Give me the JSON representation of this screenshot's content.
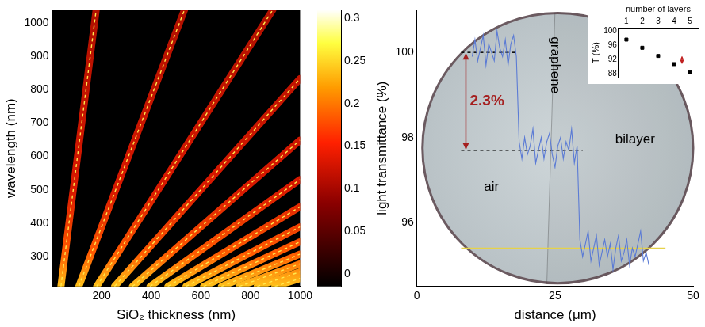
{
  "chart_data": [
    {
      "type": "heatmap",
      "x_label": "SiO₂ thickness (nm)",
      "y_label": "wavelength (nm)",
      "xlim": [
        0,
        1000
      ],
      "xticks": [
        200,
        400,
        600,
        800,
        1000
      ],
      "ylim": [
        210,
        1040
      ],
      "yticks": [
        300,
        400,
        500,
        600,
        700,
        800,
        900,
        1000
      ],
      "grid": false,
      "color": "#ffe94d",
      "line_style": "dashed",
      "contrast_maxima": [
        {
          "x": [
            36,
            178
          ],
          "y": [
            210,
            1040
          ]
        },
        {
          "x": [
            108,
            534
          ],
          "y": [
            210,
            1040
          ]
        },
        {
          "x": [
            180,
            890
          ],
          "y": [
            210,
            1040
          ]
        },
        {
          "x": [
            252,
            1000
          ],
          "y": [
            210,
            834
          ]
        },
        {
          "x": [
            324,
            1000
          ],
          "y": [
            210,
            649
          ]
        },
        {
          "x": [
            395,
            1000
          ],
          "y": [
            210,
            531
          ]
        },
        {
          "x": [
            467,
            1000
          ],
          "y": [
            210,
            449
          ]
        },
        {
          "x": [
            540,
            1000
          ],
          "y": [
            210,
            389
          ]
        },
        {
          "x": [
            611,
            1000
          ],
          "y": [
            210,
            344
          ]
        },
        {
          "x": [
            683,
            1000
          ],
          "y": [
            210,
            307
          ]
        },
        {
          "x": [
            755,
            1000
          ],
          "y": [
            210,
            278
          ]
        },
        {
          "x": [
            827,
            1000
          ],
          "y": [
            210,
            254
          ]
        },
        {
          "x": [
            898,
            1000
          ],
          "y": [
            210,
            234
          ]
        }
      ],
      "colorbar": {
        "range": [
          -0.015,
          0.31
        ],
        "ticks": [
          0,
          0.05,
          0.1,
          0.15,
          0.2,
          0.25,
          0.3
        ]
      }
    },
    {
      "type": "line",
      "x_label": "distance (μm)",
      "y_label": "light transmittance (%)",
      "xlim": [
        0,
        50
      ],
      "xticks": [
        0,
        25,
        50
      ],
      "ylim": [
        94.5,
        101
      ],
      "yticks": [
        96,
        98,
        100
      ],
      "grid": false,
      "color": "#5b7bd5",
      "x": [
        10,
        10.5,
        11,
        11.5,
        12,
        12.5,
        13,
        13.5,
        14,
        14.5,
        15,
        15.5,
        16,
        16.5,
        17,
        17.5,
        18,
        18.5,
        19,
        19.5,
        20,
        20.5,
        21,
        21.5,
        22,
        22.5,
        23,
        23.5,
        24,
        24.5,
        25,
        25.5,
        26,
        26.5,
        27,
        27.5,
        28,
        28.5,
        29,
        29.5,
        30,
        30.5,
        31,
        31.5,
        32,
        32.5,
        33,
        33.5,
        34,
        34.5,
        35,
        35.5,
        36,
        36.5,
        37,
        37.5,
        38,
        38.5,
        39,
        39.5,
        40,
        40.5,
        41,
        41.5,
        42
      ],
      "values": [
        99.9,
        100.3,
        99.8,
        100.1,
        100.4,
        99.7,
        100.2,
        100.0,
        99.8,
        100.5,
        100.1,
        99.9,
        100.3,
        99.7,
        100.2,
        100.4,
        99.9,
        97.9,
        97.5,
        98.0,
        97.6,
        97.8,
        98.2,
        97.4,
        97.7,
        98.0,
        97.5,
        97.9,
        98.1,
        97.6,
        97.3,
        97.8,
        98.0,
        97.5,
        97.9,
        97.7,
        98.2,
        97.4,
        97.8,
        95.6,
        95.2,
        95.5,
        95.8,
        95.1,
        95.4,
        95.7,
        95.0,
        95.3,
        95.6,
        95.2,
        95.5,
        94.9,
        95.4,
        95.7,
        95.1,
        95.3,
        95.6,
        95.0,
        95.4,
        95.2,
        95.5,
        95.8,
        95.1,
        95.3,
        95.0
      ],
      "reference_lines": [
        {
          "y": 100,
          "x": [
            8,
            18
          ],
          "color": "#000000",
          "line_style": "dashed"
        },
        {
          "y": 97.7,
          "x": [
            8,
            30
          ],
          "color": "#000000",
          "line_style": "dashed"
        },
        {
          "y": 95.4,
          "x": [
            8,
            45
          ],
          "color": "#e6d24a",
          "line_style": "solid"
        }
      ],
      "annotations": [
        {
          "text": "2.3%",
          "color": "#a52020"
        },
        {
          "text": "air",
          "color": "#000000"
        },
        {
          "text": "graphene",
          "color": "#000000"
        },
        {
          "text": "bilayer",
          "color": "#000000"
        }
      ]
    },
    {
      "type": "scatter",
      "x_label": "number of layers",
      "y_label": "T (%)",
      "x": [
        1,
        2,
        3,
        4,
        5
      ],
      "values": [
        97.7,
        95.4,
        93.1,
        90.8,
        88.5
      ],
      "xlim": [
        0.5,
        5.5
      ],
      "xticks": [
        1,
        2,
        3,
        4,
        5
      ],
      "ylim": [
        87,
        101
      ],
      "yticks": [
        88,
        92,
        96,
        100
      ],
      "grid": false,
      "color": "#000000",
      "marker": "square"
    }
  ]
}
